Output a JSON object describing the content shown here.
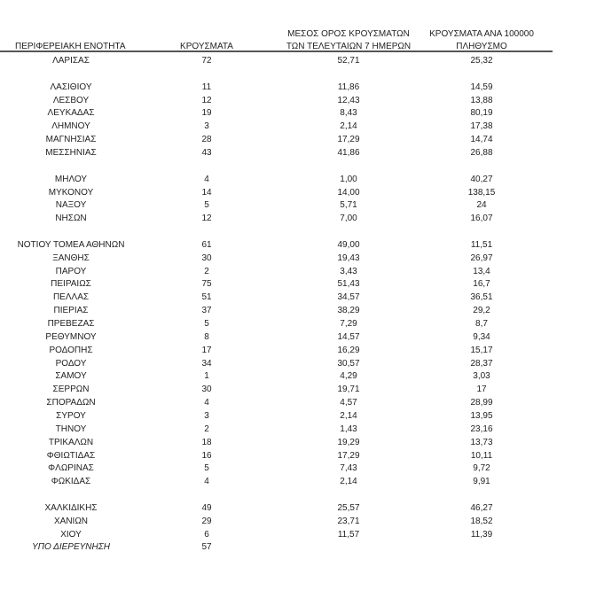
{
  "headers": {
    "region": "ΠΕΡΙΦΕΡΕΙΑΚΗ ΕΝΟΤΗΤΑ",
    "cases": "ΚΡΟΥΣΜΑΤΑ",
    "avg_line1": "ΜΕΣΟΣ ΟΡΟΣ ΚΡΟΥΣΜΑΤΩΝ",
    "avg_line2": "ΤΩΝ ΤΕΛΕΥΤΑΙΩΝ 7 ΗΜΕΡΩΝ",
    "per100k_line1": "ΚΡΟΥΣΜΑΤΑ ΑΝΑ 100000",
    "per100k_line2": "ΠΛΗΘΥΣΜΟ"
  },
  "rows": [
    {
      "region": "ΛΑΡΙΣΑΣ",
      "cases": "72",
      "avg": "52,71",
      "per100k": "25,32"
    },
    null,
    {
      "region": "ΛΑΣΙΘΙΟΥ",
      "cases": "11",
      "avg": "11,86",
      "per100k": "14,59"
    },
    {
      "region": "ΛΕΣΒΟΥ",
      "cases": "12",
      "avg": "12,43",
      "per100k": "13,88"
    },
    {
      "region": "ΛΕΥΚΑΔΑΣ",
      "cases": "19",
      "avg": "8,43",
      "per100k": "80,19"
    },
    {
      "region": "ΛΗΜΝΟΥ",
      "cases": "3",
      "avg": "2,14",
      "per100k": "17,38"
    },
    {
      "region": "ΜΑΓΝΗΣΙΑΣ",
      "cases": "28",
      "avg": "17,29",
      "per100k": "14,74"
    },
    {
      "region": "ΜΕΣΣΗΝΙΑΣ",
      "cases": "43",
      "avg": "41,86",
      "per100k": "26,88"
    },
    null,
    {
      "region": "ΜΗΛΟΥ",
      "cases": "4",
      "avg": "1,00",
      "per100k": "40,27"
    },
    {
      "region": "ΜΥΚΟΝΟΥ",
      "cases": "14",
      "avg": "14,00",
      "per100k": "138,15"
    },
    {
      "region": "ΝΑΞΟΥ",
      "cases": "5",
      "avg": "5,71",
      "per100k": "24"
    },
    {
      "region": "ΝΗΣΩΝ",
      "cases": "12",
      "avg": "7,00",
      "per100k": "16,07"
    },
    null,
    {
      "region": "ΝΟΤΙΟΥ ΤΟΜΕΑ ΑΘΗΝΩΝ",
      "cases": "61",
      "avg": "49,00",
      "per100k": "11,51"
    },
    {
      "region": "ΞΑΝΘΗΣ",
      "cases": "30",
      "avg": "19,43",
      "per100k": "26,97"
    },
    {
      "region": "ΠΑΡΟΥ",
      "cases": "2",
      "avg": "3,43",
      "per100k": "13,4"
    },
    {
      "region": "ΠΕΙΡΑΙΩΣ",
      "cases": "75",
      "avg": "51,43",
      "per100k": "16,7"
    },
    {
      "region": "ΠΕΛΛΑΣ",
      "cases": "51",
      "avg": "34,57",
      "per100k": "36,51"
    },
    {
      "region": "ΠΙΕΡΙΑΣ",
      "cases": "37",
      "avg": "38,29",
      "per100k": "29,2"
    },
    {
      "region": "ΠΡΕΒΕΖΑΣ",
      "cases": "5",
      "avg": "7,29",
      "per100k": "8,7"
    },
    {
      "region": "ΡΕΘΥΜΝΟΥ",
      "cases": "8",
      "avg": "14,57",
      "per100k": "9,34"
    },
    {
      "region": "ΡΟΔΟΠΗΣ",
      "cases": "17",
      "avg": "16,29",
      "per100k": "15,17"
    },
    {
      "region": "ΡΟΔΟΥ",
      "cases": "34",
      "avg": "30,57",
      "per100k": "28,37"
    },
    {
      "region": "ΣΑΜΟΥ",
      "cases": "1",
      "avg": "4,29",
      "per100k": "3,03"
    },
    {
      "region": "ΣΕΡΡΩΝ",
      "cases": "30",
      "avg": "19,71",
      "per100k": "17"
    },
    {
      "region": "ΣΠΟΡΑΔΩΝ",
      "cases": "4",
      "avg": "4,57",
      "per100k": "28,99"
    },
    {
      "region": "ΣΥΡΟΥ",
      "cases": "3",
      "avg": "2,14",
      "per100k": "13,95"
    },
    {
      "region": "ΤΗΝΟΥ",
      "cases": "2",
      "avg": "1,43",
      "per100k": "23,16"
    },
    {
      "region": "ΤΡΙΚΑΛΩΝ",
      "cases": "18",
      "avg": "19,29",
      "per100k": "13,73"
    },
    {
      "region": "ΦΘΙΩΤΙΔΑΣ",
      "cases": "16",
      "avg": "17,29",
      "per100k": "10,11"
    },
    {
      "region": "ΦΛΩΡΙΝΑΣ",
      "cases": "5",
      "avg": "7,43",
      "per100k": "9,72"
    },
    {
      "region": "ΦΩΚΙΔΑΣ",
      "cases": "4",
      "avg": "2,14",
      "per100k": "9,91"
    },
    null,
    {
      "region": "ΧΑΛΚΙΔΙΚΗΣ",
      "cases": "49",
      "avg": "25,57",
      "per100k": "46,27"
    },
    {
      "region": "ΧΑΝΙΩΝ",
      "cases": "29",
      "avg": "23,71",
      "per100k": "18,52"
    },
    {
      "region": "ΧΙΟΥ",
      "cases": "6",
      "avg": "11,57",
      "per100k": "11,39"
    },
    {
      "region": "ΥΠΟ ΔΙΕΡΕΥΝΗΣΗ",
      "cases": "57",
      "avg": "",
      "per100k": "",
      "italic": true
    }
  ]
}
